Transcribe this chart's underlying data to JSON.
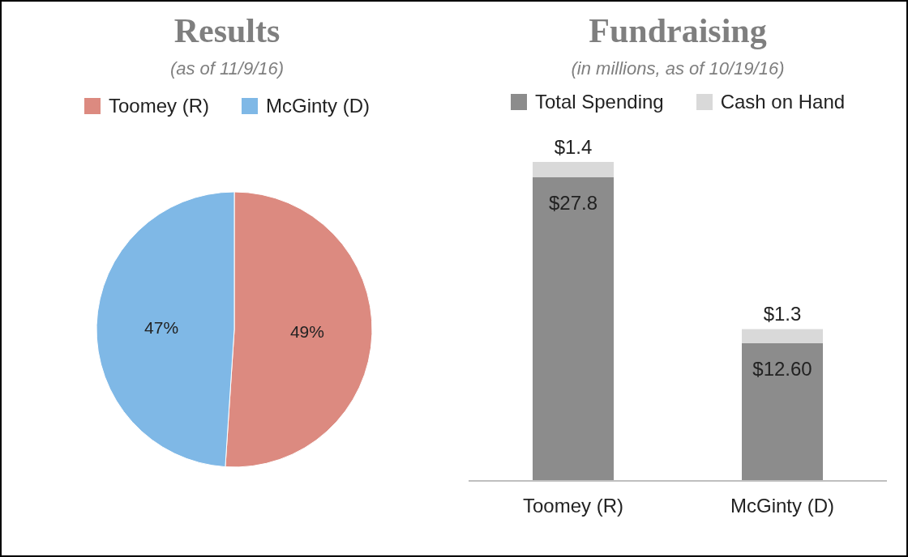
{
  "chart_data": [
    {
      "type": "pie",
      "title": "Results",
      "subtitle": "(as of 11/9/16)",
      "categories": [
        "Toomey (R)",
        "McGinty (D)"
      ],
      "values": [
        49,
        47
      ],
      "colors": [
        "#dc8a80",
        "#7fb8e6"
      ],
      "value_labels": [
        "49%",
        "47%"
      ],
      "legend": "top"
    },
    {
      "type": "bar",
      "title": "Fundraising",
      "subtitle": "(in millions, as of 10/19/16)",
      "categories": [
        "Toomey (R)",
        "McGinty (D)"
      ],
      "stacked": true,
      "legend": "top",
      "series": [
        {
          "name": "Total Spending",
          "color": "#8c8c8c",
          "values": [
            27.8,
            12.6
          ],
          "value_labels": [
            "$27.8",
            "$12.60"
          ]
        },
        {
          "name": "Cash on Hand",
          "color": "#d9d9d9",
          "values": [
            1.4,
            1.3
          ],
          "value_labels": [
            "$1.4",
            "$1.3"
          ]
        }
      ]
    }
  ]
}
